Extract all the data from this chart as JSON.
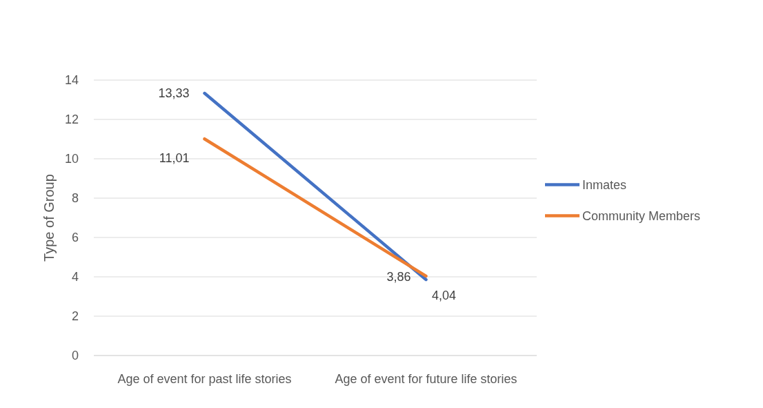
{
  "chart_data": {
    "type": "line",
    "ylabel": "Type of Group",
    "categories": [
      "Age of event for past life stories",
      "Age of event for future life stories"
    ],
    "series": [
      {
        "name": "Inmates",
        "color": "#4472c4",
        "values": [
          13.33,
          3.86
        ],
        "value_labels": [
          "13,33",
          "3,86"
        ]
      },
      {
        "name": "Community Members",
        "color": "#ed7d31",
        "values": [
          11.01,
          4.04
        ],
        "value_labels": [
          "11,01",
          "4,04"
        ]
      }
    ],
    "ylim": [
      0,
      14
    ],
    "yticks": [
      0,
      2,
      4,
      6,
      8,
      10,
      12,
      14
    ],
    "grid": "y",
    "legend": "right",
    "marker": "none",
    "line_style": "solid"
  }
}
